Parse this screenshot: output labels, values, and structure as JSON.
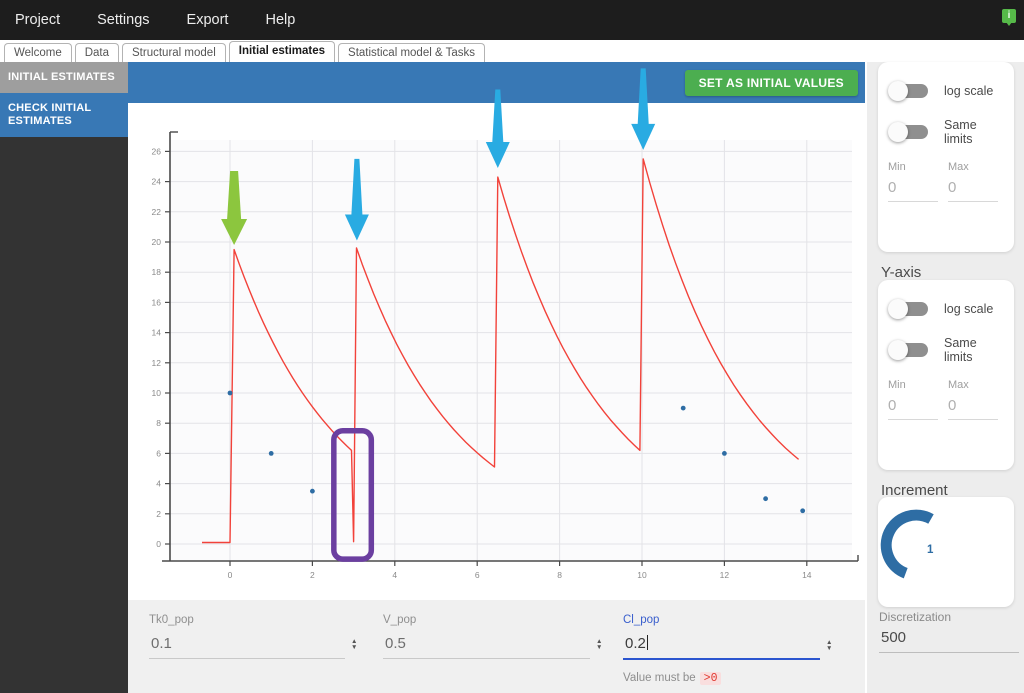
{
  "menu": {
    "items": [
      {
        "label": "Project"
      },
      {
        "label": "Settings"
      },
      {
        "label": "Export"
      },
      {
        "label": "Help"
      }
    ],
    "info_icon_glyph": "i"
  },
  "tabs": {
    "items": [
      {
        "label": "Welcome"
      },
      {
        "label": "Data"
      },
      {
        "label": "Structural model"
      },
      {
        "label": "Initial estimates"
      },
      {
        "label": "Statistical model & Tasks"
      }
    ],
    "active_index": 3
  },
  "sidebar": {
    "items": [
      {
        "label": "INITIAL ESTIMATES"
      },
      {
        "label": "CHECK INITIAL ESTIMATES"
      }
    ]
  },
  "toolbar": {
    "set_initial_values_label": "SET AS INITIAL VALUES"
  },
  "panel": {
    "x_axis": {
      "log_scale_label": "log scale",
      "same_limits_label": "Same limits",
      "min_label": "Min",
      "max_label": "Max",
      "min_value": "0",
      "max_value": "0"
    },
    "y_axis": {
      "title": "Y-axis",
      "log_scale_label": "log scale",
      "same_limits_label": "Same limits",
      "min_label": "Min",
      "max_label": "Max",
      "min_value": "0",
      "max_value": "0"
    },
    "increment": {
      "title": "Increment",
      "value": "1"
    },
    "discretization": {
      "label": "Discretization",
      "value": "500"
    }
  },
  "params": {
    "fields": [
      {
        "label": "Tk0_pop",
        "value": "0.1"
      },
      {
        "label": "V_pop",
        "value": "0.5"
      },
      {
        "label": "Cl_pop",
        "value": "0.2"
      }
    ],
    "error": {
      "prefix": "Value must be",
      "badge": ">0"
    }
  },
  "colors": {
    "topbar_bg": "#1d1d1d",
    "accent_blue": "#3878b5",
    "sidebar_bg": "#333333",
    "sidebar_item_gray": "#9e9e9e",
    "green_button": "#4cae50",
    "curve_red": "#f2423a",
    "point_blue": "#2e6da4",
    "arrow_blue": "#29abe2",
    "arrow_green": "#8cc63e",
    "annotation_purple": "#6b3fa0",
    "error_red": "#e0382f",
    "focus_blue": "#2b55cf"
  },
  "chart_data": {
    "type": "line",
    "title": "",
    "xlabel": "",
    "ylabel": "",
    "x_ticks": [
      0,
      2,
      4,
      6,
      8,
      10,
      12,
      14
    ],
    "y_ticks": [
      0,
      2,
      4,
      6,
      8,
      10,
      12,
      14,
      16,
      18,
      20,
      22,
      24,
      26
    ],
    "xlim": [
      -1.46,
      15.1
    ],
    "ylim": [
      -1.13,
      26.8
    ],
    "grid": true,
    "dose_times": [
      0,
      3,
      6.5,
      10
    ],
    "peak_values": [
      19.5,
      19.6,
      24.3,
      25.5
    ],
    "series": [
      {
        "name": "model-prediction",
        "type": "line",
        "color": "#f2423a",
        "segments": [
          {
            "mode": "linear",
            "pts": [
              [
                -0.68,
                0.1
              ],
              [
                0.0,
                0.1
              ],
              [
                0.1,
                19.5
              ]
            ]
          },
          {
            "mode": "exp",
            "pts": [
              [
                0.1,
                19.5
              ],
              [
                2.95,
                6.2
              ]
            ]
          },
          {
            "mode": "linear",
            "pts": [
              [
                2.95,
                6.2
              ],
              [
                3.0,
                0.15
              ],
              [
                3.07,
                19.6
              ]
            ]
          },
          {
            "mode": "exp",
            "pts": [
              [
                3.07,
                19.6
              ],
              [
                6.42,
                5.1
              ]
            ]
          },
          {
            "mode": "linear",
            "pts": [
              [
                6.42,
                5.1
              ],
              [
                6.5,
                24.3
              ]
            ]
          },
          {
            "mode": "exp",
            "pts": [
              [
                6.5,
                24.3
              ],
              [
                9.95,
                6.2
              ]
            ]
          },
          {
            "mode": "linear",
            "pts": [
              [
                9.95,
                6.2
              ],
              [
                10.03,
                25.5
              ]
            ]
          },
          {
            "mode": "exp",
            "pts": [
              [
                10.03,
                25.5
              ],
              [
                13.8,
                5.6
              ]
            ]
          }
        ]
      },
      {
        "name": "observations",
        "type": "scatter",
        "color": "#2e6da4",
        "points": [
          [
            0,
            10
          ],
          [
            1,
            6
          ],
          [
            2,
            3.5
          ],
          [
            11,
            9
          ],
          [
            12,
            6
          ],
          [
            13,
            3
          ],
          [
            13.9,
            2.2
          ]
        ]
      }
    ],
    "annotations": {
      "arrows": [
        {
          "style": "green",
          "color": "#8cc63e",
          "t": 0.1,
          "tip_c": 19.8,
          "tail_c": 24.7
        },
        {
          "style": "blue",
          "color": "#29abe2",
          "t": 3.08,
          "tip_c": 20.1,
          "tail_c": 25.5
        },
        {
          "style": "blue",
          "color": "#29abe2",
          "t": 6.5,
          "tip_c": 24.9,
          "tail_c": 30.1
        },
        {
          "style": "blue",
          "color": "#29abe2",
          "t": 10.03,
          "tip_c": 26.1,
          "tail_c": 31.5
        }
      ],
      "rect": {
        "t0": 2.52,
        "t1": 3.43,
        "c0": -1.0,
        "c1": 7.5,
        "color": "#6b3fa0"
      }
    }
  }
}
